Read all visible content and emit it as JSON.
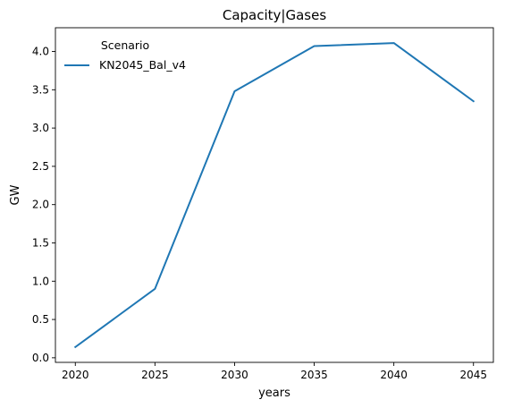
{
  "chart_data": {
    "type": "line",
    "title": "Capacity|Gases",
    "xlabel": "years",
    "ylabel": "GW",
    "x": [
      2020,
      2025,
      2030,
      2035,
      2040,
      2045
    ],
    "series": [
      {
        "name": "KN2045_Bal_v4",
        "values": [
          0.14,
          0.9,
          3.48,
          4.07,
          4.11,
          3.35
        ],
        "color": "#1f77b4"
      }
    ],
    "xticks": [
      2020,
      2025,
      2030,
      2035,
      2040,
      2045
    ],
    "xtick_labels": [
      "2020",
      "2025",
      "2030",
      "2035",
      "2040",
      "2045"
    ],
    "yticks": [
      0.0,
      0.5,
      1.0,
      1.5,
      2.0,
      2.5,
      3.0,
      3.5,
      4.0
    ],
    "ytick_labels": [
      "0.0",
      "0.5",
      "1.0",
      "1.5",
      "2.0",
      "2.5",
      "3.0",
      "3.5",
      "4.0"
    ],
    "xlim": [
      2018.75,
      2046.25
    ],
    "ylim": [
      -0.06,
      4.31
    ],
    "grid": false,
    "legend": {
      "title": "Scenario",
      "placement": "upper-left",
      "frame": false
    }
  }
}
